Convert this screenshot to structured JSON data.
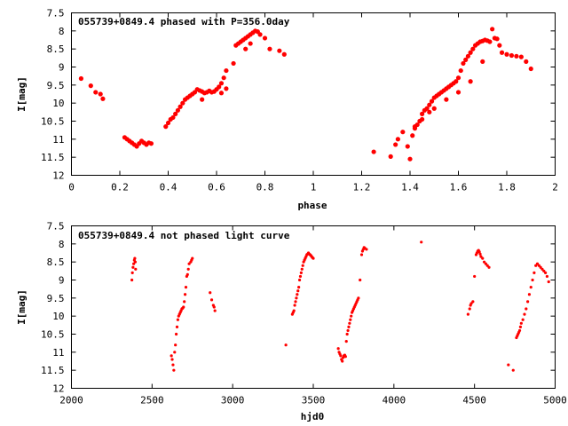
{
  "chart_data": [
    {
      "type": "scatter",
      "title": "055739+0849.4 phased with P=356.0day",
      "xlabel": "phase",
      "ylabel": "I[mag]",
      "xlim": [
        0,
        2
      ],
      "ylim": [
        12,
        7.5
      ],
      "y_inverted": true,
      "xticks": [
        "0",
        "0.2",
        "0.4",
        "0.6",
        "0.8",
        "1",
        "1.2",
        "1.4",
        "1.6",
        "1.8",
        "2"
      ],
      "xtick_values": [
        0,
        0.2,
        0.4,
        0.6,
        0.8,
        1.0,
        1.2,
        1.4,
        1.6,
        1.8,
        2.0
      ],
      "yticks": [
        "7.5",
        "8",
        "8.5",
        "9",
        "9.5",
        "10",
        "10.5",
        "11",
        "11.5",
        "12"
      ],
      "ytick_values": [
        7.5,
        8,
        8.5,
        9,
        9.5,
        10,
        10.5,
        11,
        11.5,
        12
      ],
      "marker_color": "#ff0000",
      "grid": false,
      "series": [
        {
          "x": [
            0.04,
            0.08,
            0.1,
            0.12,
            0.13,
            0.22,
            0.23,
            0.24,
            0.25,
            0.26,
            0.27,
            0.28,
            0.29,
            0.3,
            0.31,
            0.32,
            0.33,
            0.39,
            0.4,
            0.41,
            0.42,
            0.43,
            0.44,
            0.45,
            0.46,
            0.47,
            0.48,
            0.49,
            0.5,
            0.51,
            0.52,
            0.53,
            0.54,
            0.55,
            0.56,
            0.57,
            0.58,
            0.59,
            0.6,
            0.61,
            0.62,
            0.63,
            0.64,
            0.67,
            0.68,
            0.69,
            0.7,
            0.71,
            0.72,
            0.73,
            0.74,
            0.75,
            0.76,
            0.77,
            0.78,
            0.8,
            0.82,
            0.86,
            0.88,
            0.54,
            0.62,
            0.64,
            0.72,
            0.74,
            1.25,
            1.32,
            1.34,
            1.35,
            1.37,
            1.39,
            1.4,
            1.41,
            1.42,
            1.43,
            1.44,
            1.45,
            1.46,
            1.47,
            1.48,
            1.49,
            1.5,
            1.51,
            1.52,
            1.53,
            1.54,
            1.55,
            1.56,
            1.57,
            1.58,
            1.59,
            1.6,
            1.61,
            1.62,
            1.63,
            1.64,
            1.65,
            1.66,
            1.67,
            1.68,
            1.69,
            1.7,
            1.71,
            1.72,
            1.73,
            1.74,
            1.75,
            1.76,
            1.77,
            1.78,
            1.8,
            1.82,
            1.84,
            1.86,
            1.88,
            1.9,
            1.42,
            1.45,
            1.48,
            1.5,
            1.55,
            1.6,
            1.65,
            1.7
          ],
          "y": [
            9.32,
            9.52,
            9.7,
            9.75,
            9.88,
            10.95,
            11.0,
            11.05,
            11.1,
            11.15,
            11.2,
            11.12,
            11.05,
            11.1,
            11.15,
            11.1,
            11.12,
            10.65,
            10.55,
            10.45,
            10.4,
            10.3,
            10.2,
            10.1,
            10.0,
            9.9,
            9.85,
            9.8,
            9.75,
            9.7,
            9.62,
            9.65,
            9.68,
            9.72,
            9.7,
            9.66,
            9.7,
            9.68,
            9.62,
            9.55,
            9.45,
            9.3,
            9.1,
            8.9,
            8.4,
            8.35,
            8.3,
            8.25,
            8.2,
            8.15,
            8.1,
            8.05,
            8.0,
            8.02,
            8.1,
            8.2,
            8.5,
            8.55,
            8.65,
            9.9,
            9.72,
            9.6,
            8.5,
            8.35,
            11.35,
            11.48,
            11.15,
            11.0,
            10.8,
            11.2,
            11.55,
            10.9,
            10.7,
            10.6,
            10.5,
            10.3,
            10.2,
            10.15,
            10.05,
            9.95,
            9.85,
            9.8,
            9.75,
            9.7,
            9.65,
            9.6,
            9.55,
            9.5,
            9.45,
            9.4,
            9.3,
            9.1,
            8.9,
            8.8,
            8.7,
            8.6,
            8.5,
            8.4,
            8.35,
            8.3,
            8.28,
            8.25,
            8.27,
            8.3,
            7.95,
            8.2,
            8.22,
            8.4,
            8.6,
            8.65,
            8.68,
            8.7,
            8.72,
            8.85,
            9.05,
            10.65,
            10.45,
            10.25,
            10.15,
            9.9,
            9.7,
            9.4,
            8.85
          ]
        }
      ]
    },
    {
      "type": "scatter",
      "title": "055739+0849.4 not phased light curve",
      "xlabel": "hjd0",
      "ylabel": "I[mag]",
      "xlim": [
        2000,
        5000
      ],
      "ylim": [
        12,
        7.5
      ],
      "y_inverted": true,
      "xticks": [
        "2000",
        "2500",
        "3000",
        "3500",
        "4000",
        "4500",
        "5000"
      ],
      "xtick_values": [
        2000,
        2500,
        3000,
        3500,
        4000,
        4500,
        5000
      ],
      "yticks": [
        "7.5",
        "8",
        "8.5",
        "9",
        "9.5",
        "10",
        "10.5",
        "11",
        "11.5",
        "12"
      ],
      "ytick_values": [
        7.5,
        8,
        8.5,
        9,
        9.5,
        10,
        10.5,
        11,
        11.5,
        12
      ],
      "marker_color": "#ff0000",
      "grid": false,
      "series": [
        {
          "x": [
            2375,
            2378,
            2382,
            2386,
            2390,
            2393,
            2396,
            2398,
            2620,
            2625,
            2630,
            2635,
            2640,
            2645,
            2650,
            2655,
            2660,
            2665,
            2670,
            2675,
            2680,
            2685,
            2690,
            2695,
            2700,
            2705,
            2710,
            2715,
            2720,
            2725,
            2730,
            2740,
            2745,
            2750,
            2860,
            2870,
            2880,
            2885,
            2890,
            3330,
            3370,
            3375,
            3380,
            3385,
            3390,
            3395,
            3400,
            3405,
            3410,
            3415,
            3420,
            3425,
            3430,
            3435,
            3440,
            3445,
            3450,
            3455,
            3460,
            3465,
            3470,
            3475,
            3480,
            3485,
            3490,
            3495,
            3500,
            3655,
            3660,
            3665,
            3670,
            3675,
            3680,
            3685,
            3690,
            3695,
            3700,
            3705,
            3710,
            3715,
            3720,
            3725,
            3730,
            3735,
            3740,
            3745,
            3750,
            3755,
            3760,
            3765,
            3770,
            3775,
            3780,
            3790,
            3800,
            3805,
            3810,
            3815,
            3820,
            3830,
            4170,
            4460,
            4470,
            4475,
            4480,
            4490,
            4500,
            4510,
            4515,
            4520,
            4525,
            4530,
            4535,
            4540,
            4550,
            4560,
            4570,
            4580,
            4590,
            4710,
            4740,
            4760,
            4765,
            4770,
            4775,
            4780,
            4785,
            4790,
            4800,
            4810,
            4820,
            4830,
            4840,
            4850,
            4860,
            4870,
            4880,
            4890,
            4900,
            4910,
            4920,
            4930,
            4940,
            4950,
            4960
          ],
          "y": [
            9.0,
            8.8,
            8.65,
            8.55,
            8.45,
            8.4,
            8.5,
            8.7,
            11.1,
            11.2,
            11.35,
            11.5,
            11.0,
            10.8,
            10.5,
            10.3,
            10.1,
            10.0,
            9.95,
            9.9,
            9.85,
            9.8,
            9.78,
            9.75,
            9.6,
            9.4,
            9.2,
            8.9,
            8.85,
            8.7,
            8.55,
            8.5,
            8.45,
            8.4,
            9.35,
            9.55,
            9.7,
            9.75,
            9.85,
            10.8,
            9.95,
            9.9,
            9.85,
            9.7,
            9.6,
            9.5,
            9.4,
            9.3,
            9.2,
            9.0,
            8.9,
            8.8,
            8.7,
            8.6,
            8.5,
            8.45,
            8.4,
            8.35,
            8.3,
            8.28,
            8.25,
            8.28,
            8.3,
            8.32,
            8.35,
            8.38,
            8.4,
            10.9,
            11.0,
            11.05,
            11.1,
            11.2,
            11.25,
            11.15,
            11.1,
            11.08,
            11.12,
            10.7,
            10.5,
            10.4,
            10.3,
            10.2,
            10.1,
            10.0,
            9.9,
            9.85,
            9.8,
            9.75,
            9.7,
            9.65,
            9.6,
            9.55,
            9.5,
            9.0,
            8.3,
            8.2,
            8.15,
            8.1,
            8.12,
            8.15,
            7.95,
            9.95,
            9.8,
            9.7,
            9.65,
            9.6,
            8.9,
            8.3,
            8.25,
            8.2,
            8.18,
            8.22,
            8.28,
            8.35,
            8.4,
            8.5,
            8.55,
            8.6,
            8.65,
            11.35,
            11.5,
            10.6,
            10.55,
            10.5,
            10.45,
            10.4,
            10.3,
            10.2,
            10.1,
            9.95,
            9.8,
            9.6,
            9.4,
            9.2,
            9.0,
            8.8,
            8.6,
            8.55,
            8.6,
            8.65,
            8.7,
            8.75,
            8.8,
            8.9,
            9.05
          ]
        }
      ]
    }
  ]
}
